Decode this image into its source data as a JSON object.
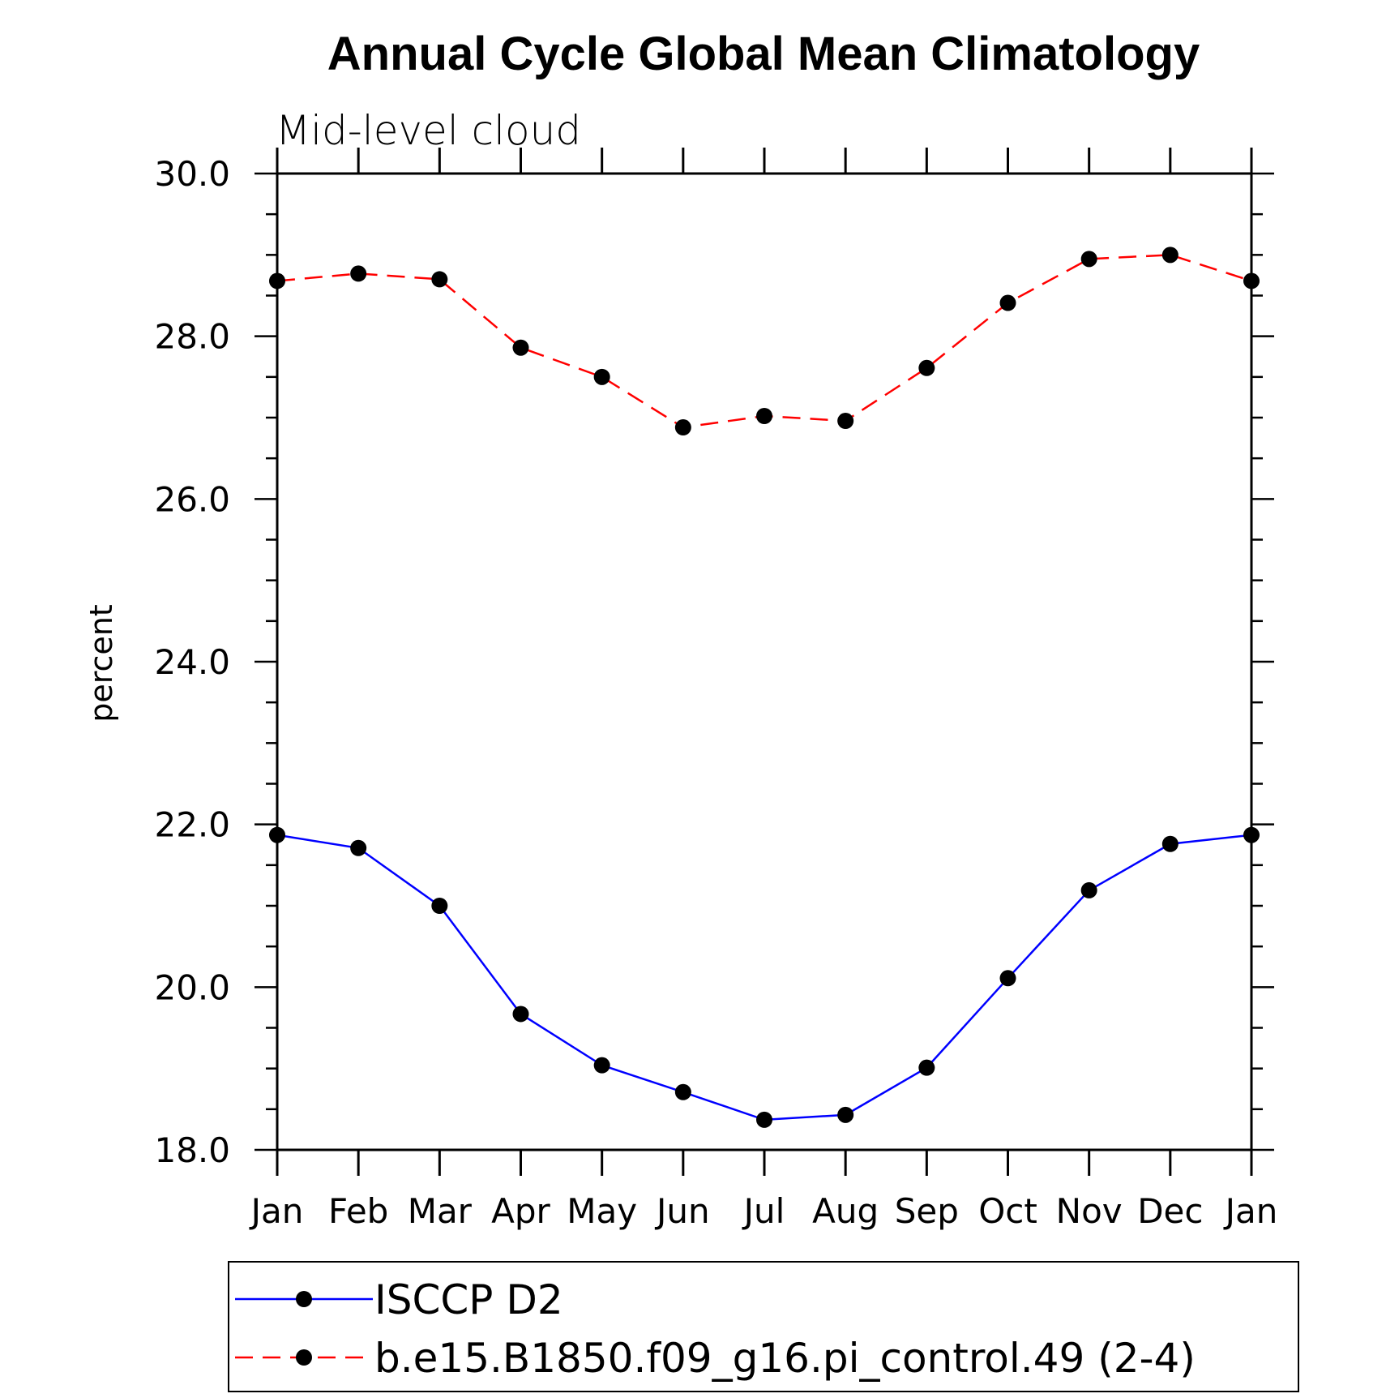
{
  "chart_data": {
    "type": "line",
    "title": "Annual Cycle Global Mean Climatology",
    "subtitle": "Mid-level cloud",
    "xlabel": "",
    "ylabel": "percent",
    "categories": [
      "Jan",
      "Feb",
      "Mar",
      "Apr",
      "May",
      "Jun",
      "Jul",
      "Aug",
      "Sep",
      "Oct",
      "Nov",
      "Dec",
      "Jan"
    ],
    "ylim": [
      18.0,
      30.0
    ],
    "yticks": [
      "18.0",
      "20.0",
      "22.0",
      "24.0",
      "26.0",
      "28.0",
      "30.0"
    ],
    "grid": false,
    "legend_position": "bottom",
    "series": [
      {
        "name": "ISCCP D2",
        "color": "#0000ff",
        "line_style": "solid",
        "marker": "filled-circle",
        "values": [
          21.87,
          21.71,
          21.0,
          19.67,
          19.04,
          18.71,
          18.37,
          18.43,
          19.01,
          20.11,
          21.19,
          21.76,
          21.87
        ]
      },
      {
        "name": "b.e15.B1850.f09_g16.pi_control.49 (2-4)",
        "color": "#ff0000",
        "line_style": "dashed",
        "marker": "filled-circle",
        "values": [
          28.68,
          28.77,
          28.7,
          27.86,
          27.5,
          26.88,
          27.02,
          26.96,
          27.61,
          28.41,
          28.95,
          29.0,
          28.68
        ]
      }
    ]
  }
}
